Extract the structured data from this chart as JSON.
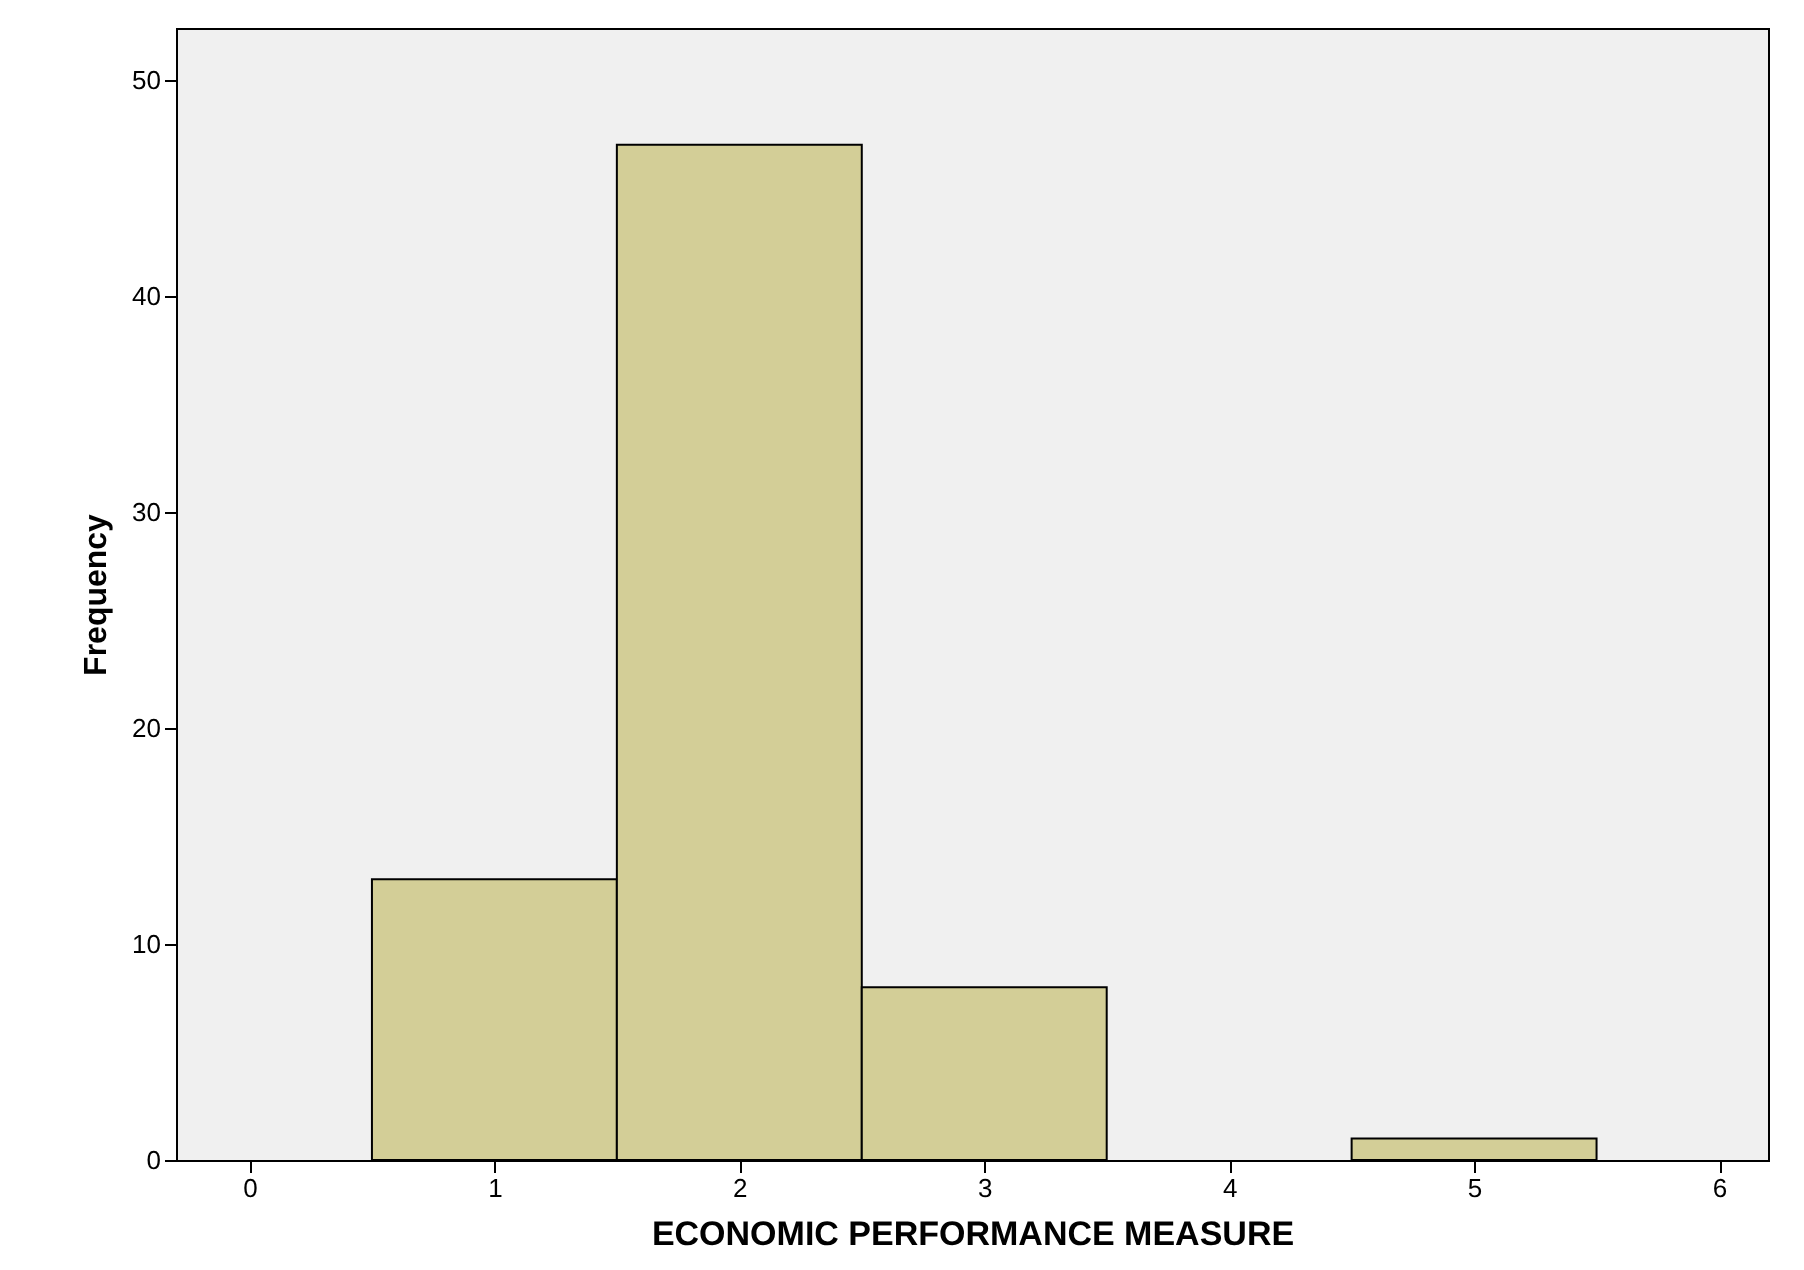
{
  "chart_data": {
    "type": "histogram",
    "xlabel": "ECONOMIC PERFORMANCE MEASURE",
    "ylabel": "Frequency",
    "bins": [
      0.5,
      1.5,
      2.5,
      3.5,
      4.5,
      5.5
    ],
    "values": [
      13,
      47,
      8,
      0,
      1
    ],
    "color": "#d3ce97",
    "xlim": [
      -0.3,
      6.2
    ],
    "xticks": [
      0,
      1,
      2,
      3,
      4,
      5,
      6
    ],
    "ylim": [
      0,
      52.4
    ],
    "yticks": [
      0,
      10,
      20,
      30,
      40,
      50
    ],
    "grid": false
  }
}
